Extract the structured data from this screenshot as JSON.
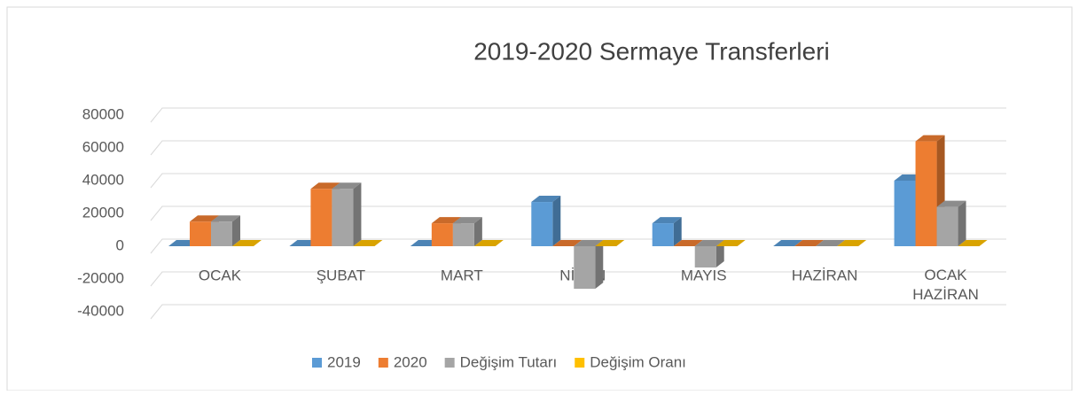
{
  "chart_data": {
    "type": "bar",
    "title": "2019-2020 Sermaye Transferleri",
    "categories": [
      "OCAK",
      "ŞUBAT",
      "MART",
      "NİSAN",
      "MAYIS",
      "HAZİRAN",
      "OCAK HAZİRAN"
    ],
    "series": [
      {
        "name": "2019",
        "color": "#5b9bd5",
        "values": [
          0,
          0,
          0,
          27000,
          14000,
          0,
          40000
        ]
      },
      {
        "name": "2020",
        "color": "#ed7d31",
        "values": [
          15000,
          35000,
          14000,
          0,
          0,
          0,
          64000
        ]
      },
      {
        "name": "Değişim Tutarı",
        "color": "#a5a5a5",
        "values": [
          15000,
          35000,
          14000,
          -26000,
          -13000,
          0,
          24000
        ]
      },
      {
        "name": "Değişim Oranı",
        "color": "#ffc000",
        "values": [
          0,
          0,
          0,
          0,
          0,
          0,
          0
        ]
      }
    ],
    "ylim": [
      -40000,
      80000
    ],
    "yticks": [
      -40000,
      -20000,
      0,
      20000,
      40000,
      60000,
      80000
    ],
    "grid": true,
    "legend": "bottom"
  }
}
